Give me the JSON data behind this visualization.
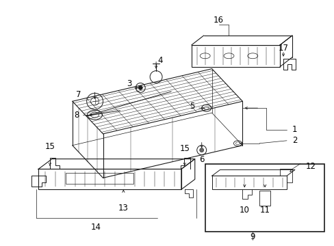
{
  "bg_color": "#ffffff",
  "line_color": "#1a1a1a",
  "text_color": "#000000",
  "fig_width": 4.89,
  "fig_height": 3.6,
  "dpi": 100,
  "font_size": 8.5
}
